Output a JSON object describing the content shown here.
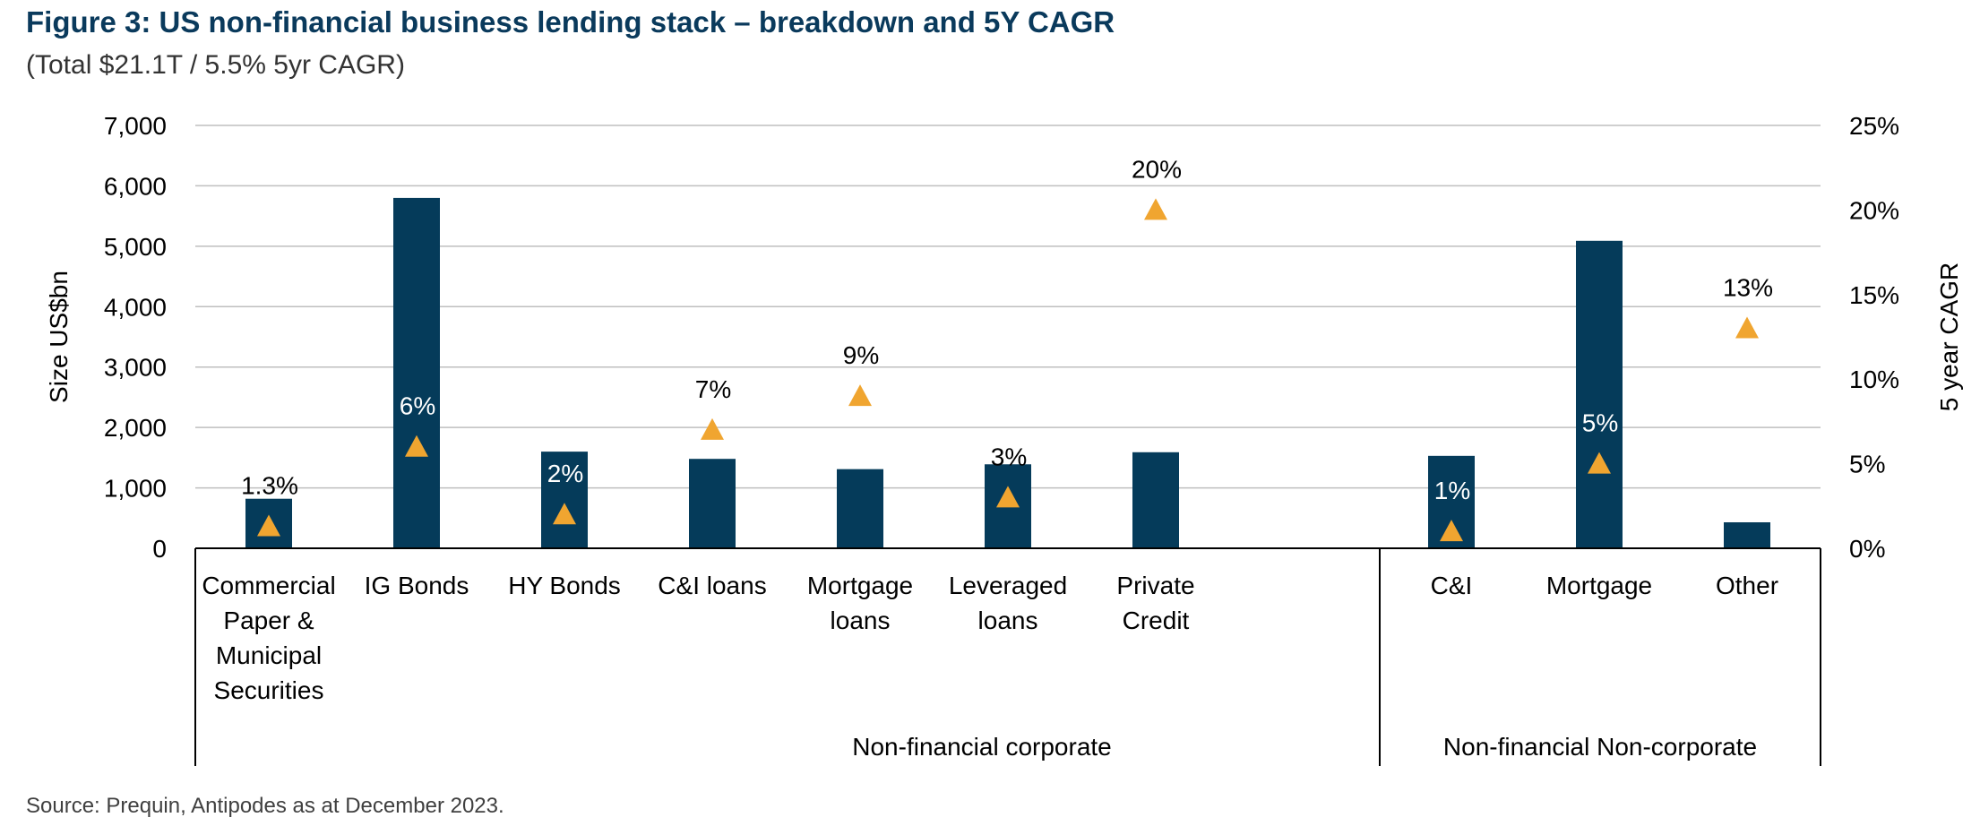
{
  "header": {
    "title": "Figure 3: US non-financial business lending stack – breakdown and 5Y CAGR",
    "subtitle": "(Total $21.1T / 5.5% 5yr CAGR)"
  },
  "footer": {
    "source": "Source: Prequin, Antipodes as at December 2023."
  },
  "colors": {
    "bar": "#053b5a",
    "marker": "#f0a530",
    "title": "#0a3a5c",
    "grid": "#bfbfbf"
  },
  "chart_data": {
    "type": "bar",
    "title": "Figure 3: US non-financial business lending stack – breakdown and 5Y CAGR",
    "subtitle": "(Total $21.1T / 5.5% 5yr CAGR)",
    "ylabel": "Size US$bn",
    "y2label": "5 year CAGR",
    "ylim": [
      0,
      7000
    ],
    "y2lim": [
      0,
      25
    ],
    "yticks": [
      "0",
      "1,000",
      "2,000",
      "3,000",
      "4,000",
      "5,000",
      "6,000",
      "7,000"
    ],
    "y2ticks": [
      "0%",
      "5%",
      "10%",
      "15%",
      "20%",
      "25%"
    ],
    "grid": true,
    "categories": [
      [
        "Commercial",
        "Paper &",
        "Municipal",
        "Securities"
      ],
      [
        "IG Bonds"
      ],
      [
        "HY Bonds"
      ],
      [
        "C&I loans"
      ],
      [
        "Mortgage",
        "loans"
      ],
      [
        "Leveraged",
        "loans"
      ],
      [
        "Private",
        "Credit"
      ],
      [
        "C&I"
      ],
      [
        "Mortgage"
      ],
      [
        "Other"
      ]
    ],
    "groups": [
      {
        "label": "Non-financial corporate",
        "count": 7
      },
      {
        "label": "Non-financial Non-corporate",
        "count": 3
      }
    ],
    "series": [
      {
        "values": [
          820,
          5800,
          1600,
          1480,
          1310,
          1390,
          1590,
          1530,
          5090,
          430
        ]
      },
      {
        "values": [
          1.3,
          6,
          2,
          7,
          9,
          3,
          20,
          1,
          5,
          13
        ]
      }
    ],
    "cagr_labels": [
      "1.3%",
      "6%",
      "2%",
      "7%",
      "9%",
      "3%",
      "20%",
      "1%",
      "5%",
      "13%"
    ],
    "cagr_label_inside_bar": [
      false,
      true,
      true,
      false,
      false,
      false,
      false,
      true,
      true,
      false
    ]
  }
}
